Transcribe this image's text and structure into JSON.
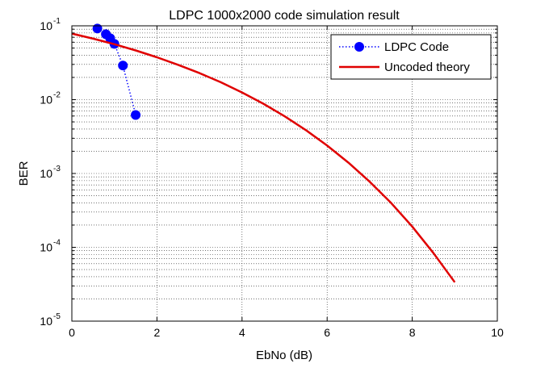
{
  "chart_data": {
    "type": "line",
    "title": "LDPC 1000x2000 code simulation result",
    "xlabel": "EbNo (dB)",
    "ylabel": "BER",
    "xscale": "linear",
    "yscale": "log",
    "xlim": [
      0,
      10
    ],
    "ylim": [
      1e-05,
      0.1
    ],
    "xticks": [
      0,
      2,
      4,
      6,
      8,
      10
    ],
    "xtick_labels": [
      "0",
      "2",
      "4",
      "6",
      "8",
      "10"
    ],
    "yticks": [
      {
        "value": 1e-05,
        "base": "10",
        "exp": "-5"
      },
      {
        "value": 0.0001,
        "base": "10",
        "exp": "-4"
      },
      {
        "value": 0.001,
        "base": "10",
        "exp": "-3"
      },
      {
        "value": 0.01,
        "base": "10",
        "exp": "-2"
      },
      {
        "value": 0.1,
        "base": "10",
        "exp": "-1"
      }
    ],
    "grid": "major-and-minor dotted",
    "legend_position": "top-right",
    "series": [
      {
        "name": "LDPC Code",
        "style": "dotted line with filled circle markers",
        "color": "#0000ff",
        "x": [
          0.6,
          0.8,
          0.9,
          1.0,
          1.2,
          1.5
        ],
        "y": [
          0.092,
          0.077,
          0.068,
          0.057,
          0.029,
          0.0062
        ]
      },
      {
        "name": "Uncoded theory",
        "style": "solid line",
        "color": "#e00000",
        "x": [
          0,
          0.5,
          1,
          1.5,
          2,
          2.5,
          3,
          3.5,
          4,
          4.5,
          5,
          5.5,
          6,
          6.5,
          7,
          7.5,
          8,
          8.5,
          9
        ],
        "y": [
          0.0786,
          0.0671,
          0.0563,
          0.0464,
          0.0375,
          0.0296,
          0.0229,
          0.0172,
          0.0125,
          0.00882,
          0.00595,
          0.00386,
          0.00239,
          0.0014,
          0.000773,
          0.0004,
          0.000191,
          8.33e-05,
          3.36e-05
        ]
      }
    ]
  }
}
